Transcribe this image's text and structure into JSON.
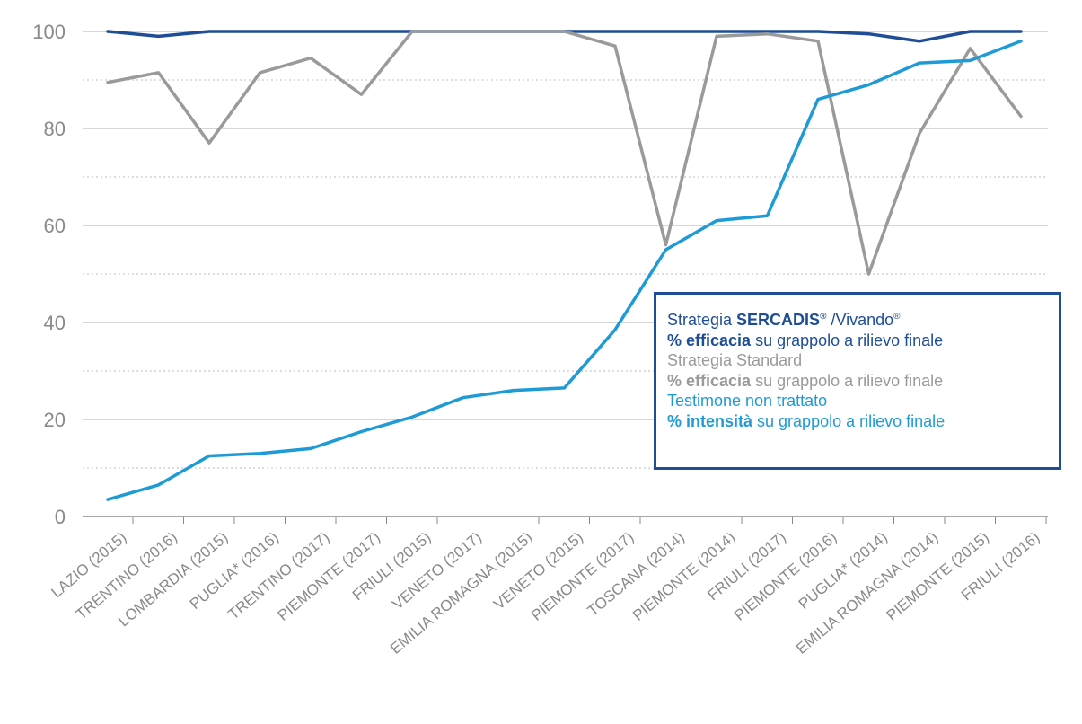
{
  "chart_data": {
    "type": "line",
    "categories": [
      "LAZIO (2015)",
      "TRENTINO (2016)",
      "LOMBARDIA (2015)",
      "PUGLIA* (2016)",
      "TRENTINO (2017)",
      "PIEMONTE (2017)",
      "FRIULI (2015)",
      "VENETO (2017)",
      "EMILIA ROMAGNA (2015)",
      "VENETO (2015)",
      "PIEMONTE (2017)",
      "TOSCANA (2014)",
      "PIEMONTE (2014)",
      "FRIULI (2017)",
      "PIEMONTE (2016)",
      "PUGLIA* (2014)",
      "EMILIA ROMAGNA (2014)",
      "PIEMONTE (2015)",
      "FRIULI (2016)"
    ],
    "series": [
      {
        "color": "#1f4e96",
        "values": [
          100,
          99,
          100,
          100,
          100,
          100,
          100,
          100,
          100,
          100,
          100,
          100,
          100,
          100,
          100,
          99.5,
          98,
          100,
          100
        ]
      },
      {
        "color": "#9a9a9a",
        "values": [
          89.5,
          91.5,
          77,
          91.5,
          94.5,
          87,
          100,
          100,
          100,
          100,
          97,
          56,
          99,
          99.5,
          98,
          50,
          79,
          96.5,
          82.5
        ]
      },
      {
        "color": "#1e9bd7",
        "values": [
          3.5,
          6.5,
          12.5,
          13,
          14,
          17.5,
          20.5,
          24.5,
          26,
          26.5,
          38.5,
          55,
          61,
          62,
          86,
          89,
          93.5,
          94,
          98
        ]
      }
    ],
    "ylim": [
      0,
      100
    ],
    "yticks": [
      "0",
      "20",
      "40",
      "60",
      "80",
      "100"
    ],
    "grid": true,
    "legend_position": "right",
    "legend": [
      {
        "lines": [
          [
            {
              "text": "Strategia ",
              "bold": false
            },
            {
              "text": "SERCADIS",
              "bold": true
            },
            {
              "text": "®",
              "bold": true,
              "sup": true
            },
            {
              "text": " /Vivando",
              "bold": false
            },
            {
              "text": "®",
              "bold": false,
              "sup": true
            }
          ],
          [
            {
              "text": "% efficacia",
              "bold": true
            },
            {
              "text": " su grappolo a rilievo finale",
              "bold": false
            }
          ]
        ],
        "color": "#1f4e96"
      },
      {
        "lines": [
          [
            {
              "text": "Strategia Standard",
              "bold": false
            }
          ],
          [
            {
              "text": "% efficacia",
              "bold": true
            },
            {
              "text": " su grappolo a rilievo finale",
              "bold": false
            }
          ]
        ],
        "color": "#9a9a9a"
      },
      {
        "lines": [
          [
            {
              "text": "Testimone non trattato",
              "bold": false
            }
          ],
          [
            {
              "text": "% intensità",
              "bold": true
            },
            {
              "text": " su grappolo a rilievo finale",
              "bold": false
            }
          ]
        ],
        "color": "#1e9bd7"
      }
    ]
  },
  "colors": {
    "gridline": "#bdbdbd",
    "axis": "#8a8a8a",
    "tick_text": "#8a8a8a",
    "legend_border": "#1f4e96"
  }
}
